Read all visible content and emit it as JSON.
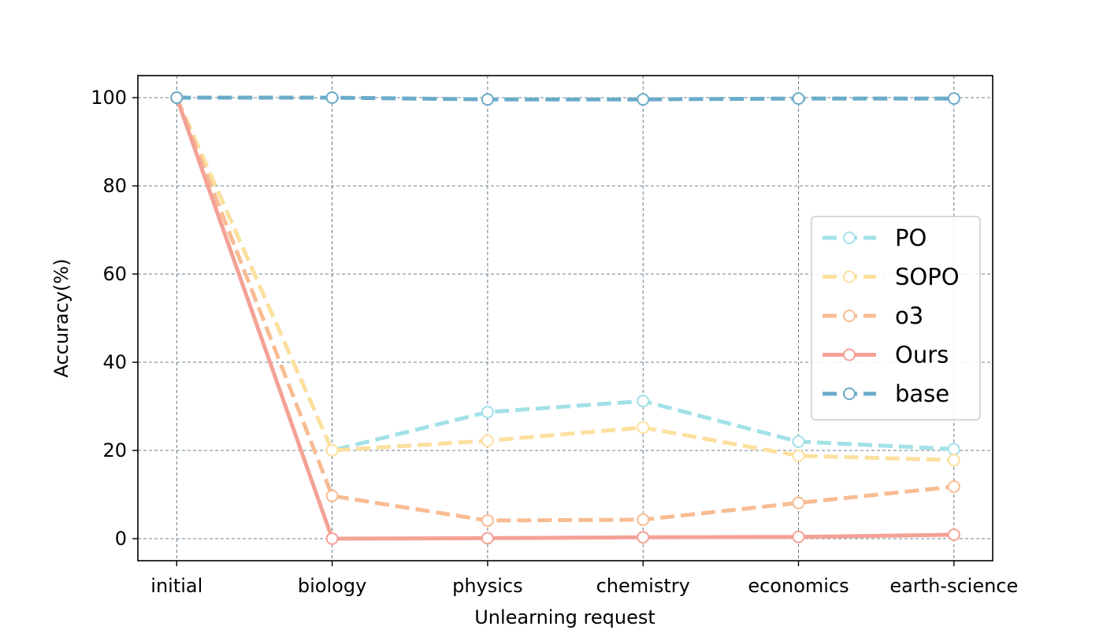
{
  "chart_data": {
    "type": "line",
    "title": "",
    "xlabel": "Unlearning request",
    "ylabel": "Accuracy(%)",
    "categories": [
      "initial",
      "biology",
      "physics",
      "chemistry",
      "economics",
      "earth-science"
    ],
    "ylim": [
      -5,
      105
    ],
    "yticks": [
      0,
      20,
      40,
      60,
      80,
      100
    ],
    "grid": true,
    "legend_position": "center-right",
    "series": [
      {
        "name": "PO",
        "values": [
          100,
          20,
          28.7,
          31.2,
          22,
          20.3
        ],
        "color": "#a2e1e8",
        "dashed": true
      },
      {
        "name": "SOPO",
        "values": [
          100,
          20,
          22.2,
          25.2,
          18.8,
          17.8
        ],
        "color": "#fde09e",
        "dashed": true
      },
      {
        "name": "o3",
        "values": [
          100,
          9.7,
          4.1,
          4.3,
          8.1,
          11.8
        ],
        "color": "#f8bc93",
        "dashed": true
      },
      {
        "name": "Ours",
        "values": [
          100,
          0,
          0.1,
          0.3,
          0.4,
          0.9
        ],
        "color": "#f4a195",
        "dashed": false
      },
      {
        "name": "base",
        "values": [
          100,
          100,
          99.6,
          99.6,
          99.8,
          99.8
        ],
        "color": "#6aabc9",
        "dashed": true
      }
    ]
  }
}
